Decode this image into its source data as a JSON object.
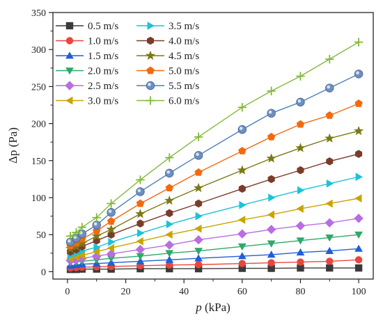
{
  "chart_data": {
    "type": "line",
    "xlabel_prefix": "p",
    "xlabel_suffix": " (kPa)",
    "ylabel_prefix": "Δp",
    "ylabel_suffix": " (Pa)",
    "xlim": [
      -5,
      105
    ],
    "ylim": [
      -10,
      350
    ],
    "xticks": [
      0,
      20,
      40,
      60,
      80,
      100
    ],
    "yticks": [
      0,
      50,
      100,
      150,
      200,
      250,
      300,
      350
    ],
    "grid": false,
    "legend_position": "top-left",
    "x": [
      1,
      3,
      5,
      10,
      15,
      25,
      35,
      45,
      60,
      70,
      80,
      90,
      100
    ],
    "series": [
      {
        "name": "0.5 m/s",
        "marker": "square",
        "color": "#3a3a3a",
        "values": [
          3,
          3,
          3.5,
          3.5,
          3.5,
          4,
          4,
          4,
          4.5,
          4.5,
          5,
          5,
          5
        ]
      },
      {
        "name": "1.0 m/s",
        "marker": "circle",
        "color": "#e8473d",
        "values": [
          5,
          5.5,
          6,
          6.5,
          7,
          8,
          9,
          9.5,
          11,
          12,
          13,
          14,
          16
        ]
      },
      {
        "name": "1.5 m/s",
        "marker": "triangle-up",
        "color": "#1e5fd8",
        "values": [
          8,
          9,
          10,
          11,
          12,
          14,
          16,
          18,
          21,
          23,
          26,
          28,
          31
        ]
      },
      {
        "name": "2.0 m/s",
        "marker": "triangle-down",
        "color": "#2ea86b",
        "values": [
          12,
          13,
          14,
          16,
          18,
          21,
          25,
          28,
          34,
          38,
          42,
          46,
          50
        ]
      },
      {
        "name": "2.5 m/s",
        "marker": "diamond",
        "color": "#b86ee0",
        "values": [
          15,
          16,
          18,
          21,
          24,
          30,
          36,
          43,
          51,
          57,
          62,
          66,
          72
        ]
      },
      {
        "name": "3.0 m/s",
        "marker": "triangle-left",
        "color": "#c9a400",
        "values": [
          18,
          20,
          22,
          27,
          32,
          41,
          50,
          58,
          70,
          77,
          85,
          92,
          99
        ]
      },
      {
        "name": "3.5 m/s",
        "marker": "triangle-right",
        "color": "#1bc2d8",
        "values": [
          22,
          25,
          28,
          33,
          40,
          52,
          64,
          75,
          90,
          100,
          110,
          119,
          128
        ]
      },
      {
        "name": "4.0 m/s",
        "marker": "hexagon",
        "color": "#7a3c2a",
        "values": [
          27,
          30,
          34,
          42,
          50,
          65,
          79,
          92,
          112,
          125,
          137,
          149,
          159
        ]
      },
      {
        "name": "4.5 m/s",
        "marker": "star",
        "color": "#7a7a14",
        "values": [
          31,
          34,
          38,
          48,
          57,
          78,
          96,
          113,
          137,
          153,
          167,
          180,
          190
        ]
      },
      {
        "name": "5.0 m/s",
        "marker": "pentagon",
        "color": "#f26a0f",
        "values": [
          35,
          39,
          44,
          55,
          68,
          92,
          113,
          134,
          163,
          182,
          199,
          211,
          227
        ]
      },
      {
        "name": "5.5 m/s",
        "marker": "sphere",
        "color": "#4a7eb5",
        "values": [
          40,
          45,
          51,
          63,
          80,
          108,
          133,
          157,
          192,
          214,
          229,
          248,
          267
        ]
      },
      {
        "name": "6.0 m/s",
        "marker": "plus",
        "color": "#82b83a",
        "values": [
          48,
          53,
          60,
          73,
          92,
          124,
          154,
          182,
          222,
          244,
          264,
          287,
          310
        ]
      }
    ]
  }
}
